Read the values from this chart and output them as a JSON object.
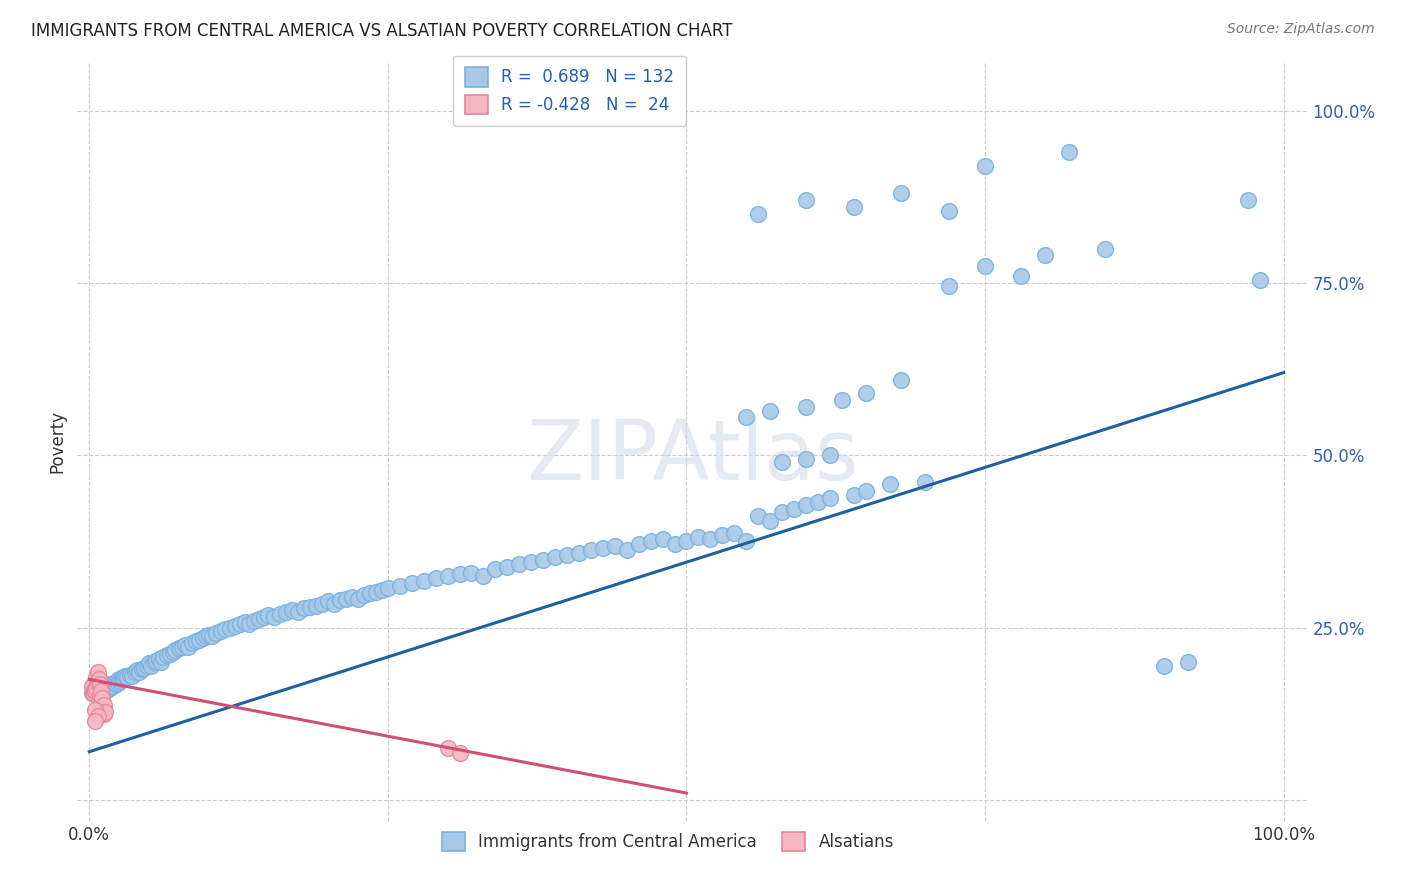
{
  "title": "IMMIGRANTS FROM CENTRAL AMERICA VS ALSATIAN POVERTY CORRELATION CHART",
  "source": "Source: ZipAtlas.com",
  "ylabel": "Poverty",
  "ytick_vals": [
    0.0,
    0.25,
    0.5,
    0.75,
    1.0
  ],
  "ytick_labels": [
    "",
    "25.0%",
    "50.0%",
    "75.0%",
    "100.0%"
  ],
  "xtick_vals": [
    0.0,
    0.25,
    0.5,
    0.75,
    1.0
  ],
  "xtick_labels": [
    "0.0%",
    "",
    "",
    "",
    "100.0%"
  ],
  "blue_color_edge": "#7ab3e0",
  "blue_color_face": "#a8c8e8",
  "pink_color_edge": "#e8849a",
  "pink_color_face": "#f4b8c4",
  "line_blue": "#2060a0",
  "line_pink": "#d05070",
  "watermark": "ZIPAtlas",
  "background": "#ffffff",
  "blue_line_x": [
    0.0,
    1.0
  ],
  "blue_line_y": [
    0.07,
    0.62
  ],
  "pink_line_x": [
    0.0,
    0.5
  ],
  "pink_line_y": [
    0.175,
    0.01
  ],
  "blue_points": [
    [
      0.002,
      0.155
    ],
    [
      0.003,
      0.165
    ],
    [
      0.004,
      0.16
    ],
    [
      0.005,
      0.155
    ],
    [
      0.006,
      0.16
    ],
    [
      0.007,
      0.158
    ],
    [
      0.008,
      0.162
    ],
    [
      0.009,
      0.155
    ],
    [
      0.01,
      0.16
    ],
    [
      0.011,
      0.165
    ],
    [
      0.012,
      0.158
    ],
    [
      0.013,
      0.162
    ],
    [
      0.014,
      0.165
    ],
    [
      0.015,
      0.16
    ],
    [
      0.016,
      0.168
    ],
    [
      0.017,
      0.162
    ],
    [
      0.018,
      0.165
    ],
    [
      0.019,
      0.168
    ],
    [
      0.02,
      0.165
    ],
    [
      0.021,
      0.17
    ],
    [
      0.022,
      0.168
    ],
    [
      0.023,
      0.172
    ],
    [
      0.024,
      0.17
    ],
    [
      0.025,
      0.175
    ],
    [
      0.026,
      0.172
    ],
    [
      0.027,
      0.175
    ],
    [
      0.028,
      0.178
    ],
    [
      0.029,
      0.175
    ],
    [
      0.03,
      0.18
    ],
    [
      0.032,
      0.178
    ],
    [
      0.034,
      0.182
    ],
    [
      0.036,
      0.18
    ],
    [
      0.038,
      0.185
    ],
    [
      0.04,
      0.188
    ],
    [
      0.042,
      0.185
    ],
    [
      0.044,
      0.19
    ],
    [
      0.046,
      0.192
    ],
    [
      0.048,
      0.195
    ],
    [
      0.05,
      0.198
    ],
    [
      0.052,
      0.195
    ],
    [
      0.054,
      0.2
    ],
    [
      0.056,
      0.202
    ],
    [
      0.058,
      0.205
    ],
    [
      0.06,
      0.2
    ],
    [
      0.062,
      0.208
    ],
    [
      0.065,
      0.21
    ],
    [
      0.068,
      0.212
    ],
    [
      0.07,
      0.215
    ],
    [
      0.072,
      0.218
    ],
    [
      0.075,
      0.22
    ],
    [
      0.078,
      0.222
    ],
    [
      0.08,
      0.225
    ],
    [
      0.083,
      0.222
    ],
    [
      0.086,
      0.228
    ],
    [
      0.089,
      0.23
    ],
    [
      0.092,
      0.232
    ],
    [
      0.095,
      0.235
    ],
    [
      0.098,
      0.238
    ],
    [
      0.1,
      0.24
    ],
    [
      0.103,
      0.238
    ],
    [
      0.106,
      0.242
    ],
    [
      0.11,
      0.245
    ],
    [
      0.114,
      0.248
    ],
    [
      0.118,
      0.25
    ],
    [
      0.122,
      0.252
    ],
    [
      0.126,
      0.255
    ],
    [
      0.13,
      0.258
    ],
    [
      0.134,
      0.255
    ],
    [
      0.138,
      0.26
    ],
    [
      0.142,
      0.262
    ],
    [
      0.146,
      0.265
    ],
    [
      0.15,
      0.268
    ],
    [
      0.155,
      0.265
    ],
    [
      0.16,
      0.27
    ],
    [
      0.165,
      0.272
    ],
    [
      0.17,
      0.275
    ],
    [
      0.175,
      0.272
    ],
    [
      0.18,
      0.278
    ],
    [
      0.185,
      0.28
    ],
    [
      0.19,
      0.282
    ],
    [
      0.195,
      0.285
    ],
    [
      0.2,
      0.288
    ],
    [
      0.205,
      0.285
    ],
    [
      0.21,
      0.29
    ],
    [
      0.215,
      0.292
    ],
    [
      0.22,
      0.295
    ],
    [
      0.225,
      0.292
    ],
    [
      0.23,
      0.298
    ],
    [
      0.235,
      0.3
    ],
    [
      0.24,
      0.302
    ],
    [
      0.245,
      0.305
    ],
    [
      0.25,
      0.308
    ],
    [
      0.26,
      0.31
    ],
    [
      0.27,
      0.315
    ],
    [
      0.28,
      0.318
    ],
    [
      0.29,
      0.322
    ],
    [
      0.3,
      0.325
    ],
    [
      0.31,
      0.328
    ],
    [
      0.32,
      0.33
    ],
    [
      0.33,
      0.325
    ],
    [
      0.34,
      0.335
    ],
    [
      0.35,
      0.338
    ],
    [
      0.36,
      0.342
    ],
    [
      0.37,
      0.345
    ],
    [
      0.38,
      0.348
    ],
    [
      0.39,
      0.352
    ],
    [
      0.4,
      0.355
    ],
    [
      0.41,
      0.358
    ],
    [
      0.42,
      0.362
    ],
    [
      0.43,
      0.365
    ],
    [
      0.44,
      0.368
    ],
    [
      0.45,
      0.362
    ],
    [
      0.46,
      0.372
    ],
    [
      0.47,
      0.375
    ],
    [
      0.48,
      0.378
    ],
    [
      0.49,
      0.372
    ],
    [
      0.5,
      0.375
    ],
    [
      0.51,
      0.382
    ],
    [
      0.52,
      0.378
    ],
    [
      0.53,
      0.385
    ],
    [
      0.54,
      0.388
    ],
    [
      0.55,
      0.375
    ],
    [
      0.56,
      0.412
    ],
    [
      0.57,
      0.405
    ],
    [
      0.58,
      0.418
    ],
    [
      0.59,
      0.422
    ],
    [
      0.6,
      0.428
    ],
    [
      0.61,
      0.432
    ],
    [
      0.62,
      0.438
    ],
    [
      0.64,
      0.442
    ],
    [
      0.65,
      0.448
    ],
    [
      0.67,
      0.458
    ],
    [
      0.7,
      0.462
    ],
    [
      0.58,
      0.49
    ],
    [
      0.6,
      0.495
    ],
    [
      0.62,
      0.5
    ],
    [
      0.55,
      0.555
    ],
    [
      0.57,
      0.565
    ],
    [
      0.6,
      0.57
    ],
    [
      0.63,
      0.58
    ],
    [
      0.65,
      0.59
    ],
    [
      0.68,
      0.61
    ],
    [
      0.72,
      0.745
    ],
    [
      0.75,
      0.775
    ],
    [
      0.78,
      0.76
    ],
    [
      0.8,
      0.79
    ],
    [
      0.85,
      0.8
    ],
    [
      0.56,
      0.85
    ],
    [
      0.6,
      0.87
    ],
    [
      0.64,
      0.86
    ],
    [
      0.68,
      0.88
    ],
    [
      0.72,
      0.855
    ],
    [
      0.75,
      0.92
    ],
    [
      0.82,
      0.94
    ],
    [
      0.98,
      0.755
    ],
    [
      0.97,
      0.87
    ],
    [
      0.9,
      0.195
    ],
    [
      0.92,
      0.2
    ]
  ],
  "pink_points": [
    [
      0.002,
      0.165
    ],
    [
      0.003,
      0.155
    ],
    [
      0.004,
      0.16
    ],
    [
      0.005,
      0.158
    ],
    [
      0.006,
      0.162
    ],
    [
      0.006,
      0.178
    ],
    [
      0.007,
      0.17
    ],
    [
      0.007,
      0.185
    ],
    [
      0.008,
      0.175
    ],
    [
      0.008,
      0.145
    ],
    [
      0.009,
      0.168
    ],
    [
      0.009,
      0.152
    ],
    [
      0.01,
      0.158
    ],
    [
      0.01,
      0.142
    ],
    [
      0.011,
      0.148
    ],
    [
      0.011,
      0.132
    ],
    [
      0.012,
      0.138
    ],
    [
      0.012,
      0.125
    ],
    [
      0.013,
      0.128
    ],
    [
      0.005,
      0.13
    ],
    [
      0.007,
      0.122
    ],
    [
      0.3,
      0.075
    ],
    [
      0.31,
      0.068
    ],
    [
      0.005,
      0.115
    ]
  ]
}
